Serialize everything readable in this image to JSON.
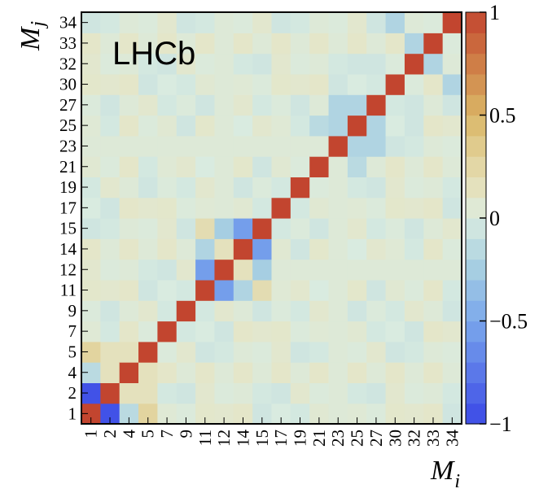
{
  "chart_data": {
    "type": "heatmap",
    "title": "LHCb",
    "xlabel": "M",
    "xlabel_sub": "i",
    "ylabel": "M",
    "ylabel_sub": "j",
    "categories": [
      "1",
      "2",
      "4",
      "5",
      "7",
      "9",
      "11",
      "12",
      "14",
      "15",
      "17",
      "19",
      "21",
      "23",
      "25",
      "27",
      "30",
      "32",
      "33",
      "34"
    ],
    "zlim": [
      -1,
      1
    ],
    "colorbar_ticks": [
      {
        "value": 1,
        "label": "1"
      },
      {
        "value": 0.5,
        "label": "0.5"
      },
      {
        "value": 0,
        "label": "0"
      },
      {
        "value": -0.5,
        "label": "−0.5"
      },
      {
        "value": -1,
        "label": "−1"
      }
    ],
    "colorbar_bins": 20,
    "colorscale": [
      {
        "v": -1.0,
        "c": "#3b49e6"
      },
      {
        "v": -0.5,
        "c": "#7aa7ec"
      },
      {
        "v": -0.25,
        "c": "#a6cee2"
      },
      {
        "v": 0.0,
        "c": "#d9ebe0"
      },
      {
        "v": 0.1,
        "c": "#e4e6c9"
      },
      {
        "v": 0.3,
        "c": "#e2d29a"
      },
      {
        "v": 0.5,
        "c": "#dab666"
      },
      {
        "v": 0.75,
        "c": "#cf7e47"
      },
      {
        "v": 1.0,
        "c": "#c2452f"
      }
    ],
    "overrides": [
      {
        "i": 1,
        "j": 0,
        "v": -0.95
      },
      {
        "i": 2,
        "j": 0,
        "v": -0.15
      },
      {
        "i": 3,
        "j": 0,
        "v": 0.28
      },
      {
        "i": 2,
        "j": 1,
        "v": 0.15
      },
      {
        "i": 3,
        "j": 1,
        "v": -0.2
      },
      {
        "i": 3,
        "j": 2,
        "v": -0.55
      },
      {
        "i": 7,
        "j": 6,
        "v": -0.55
      },
      {
        "i": 8,
        "j": 6,
        "v": -0.2
      },
      {
        "i": 9,
        "j": 6,
        "v": 0.2
      },
      {
        "i": 8,
        "j": 7,
        "v": 0.15
      },
      {
        "i": 9,
        "j": 7,
        "v": -0.25
      },
      {
        "i": 9,
        "j": 8,
        "v": -0.55
      },
      {
        "i": 14,
        "j": 12,
        "v": -0.15
      },
      {
        "i": 14,
        "j": 13,
        "v": -0.2
      },
      {
        "i": 15,
        "j": 13,
        "v": -0.2
      },
      {
        "i": 15,
        "j": 14,
        "v": -0.2
      },
      {
        "i": 17,
        "j": 15,
        "v": -0.05
      },
      {
        "i": 18,
        "j": 17,
        "v": -0.2
      },
      {
        "i": 19,
        "j": 16,
        "v": -0.2
      },
      {
        "i": 16,
        "j": 19,
        "v": -0.2
      },
      {
        "i": 1,
        "j": 3,
        "v": 0.15
      },
      {
        "i": 2,
        "j": 3,
        "v": 0.15
      }
    ],
    "background_values": [
      0.0,
      0.08,
      0.05,
      -0.03,
      0.1,
      0.02,
      0.06,
      -0.05,
      0.09,
      0.04
    ]
  }
}
